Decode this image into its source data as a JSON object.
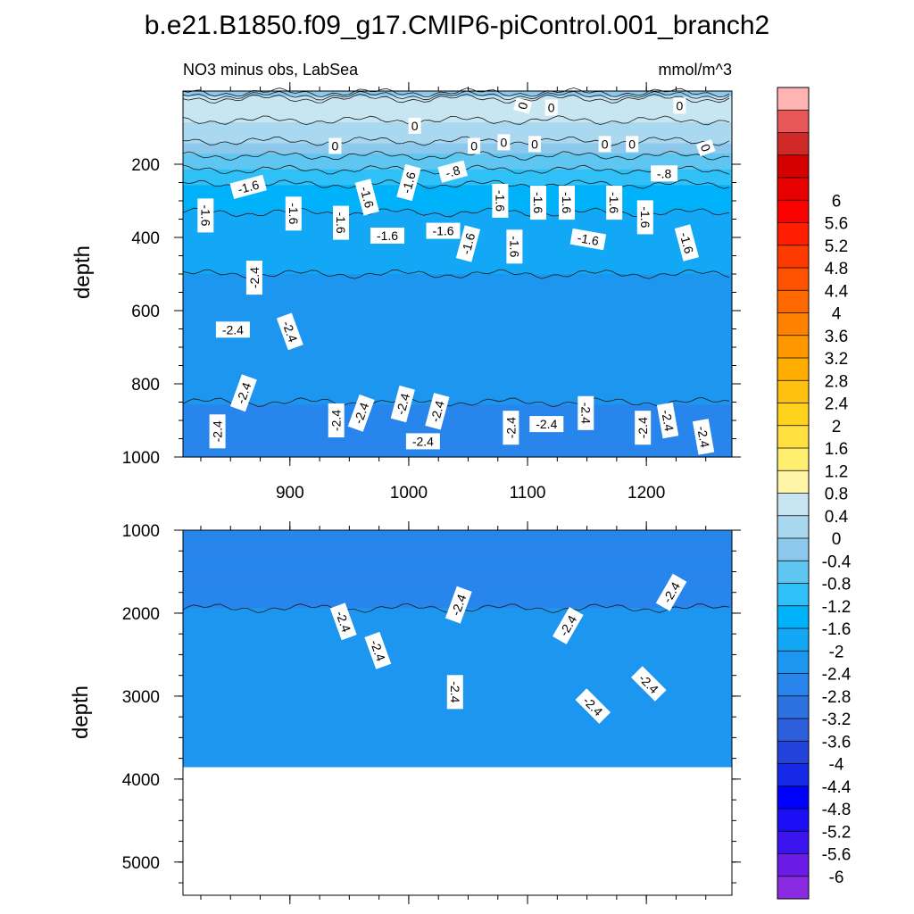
{
  "chart_data": {
    "type": "heatmap",
    "title": "b.e21.B1850.f09_g17.CMIP6-piControl.001_branch2",
    "subtitle_left": "NO3 minus obs, LabSea",
    "subtitle_right": "mmol/m^3",
    "x": {
      "label": "",
      "range": [
        810,
        1272
      ],
      "ticks": [
        900,
        1000,
        1100,
        1200
      ],
      "tick_labels": [
        "900",
        "1000",
        "1100",
        "1200"
      ]
    },
    "panels": [
      {
        "name": "upper",
        "ylabel": "depth",
        "ylim": [
          1000,
          0
        ],
        "yticks": [
          200,
          400,
          600,
          800,
          1000
        ],
        "ytick_labels": [
          "200",
          "400",
          "600",
          "800",
          "1000"
        ],
        "profile": [
          {
            "depth": 0,
            "value": -0.6
          },
          {
            "depth": 25,
            "value": 0.6
          },
          {
            "depth": 60,
            "value": 0.5
          },
          {
            "depth": 100,
            "value": 0.3
          },
          {
            "depth": 130,
            "value": 0.1
          },
          {
            "depth": 150,
            "value": -0.2
          },
          {
            "depth": 190,
            "value": -0.5
          },
          {
            "depth": 240,
            "value": -1.1
          },
          {
            "depth": 300,
            "value": -1.5
          },
          {
            "depth": 380,
            "value": -1.75
          },
          {
            "depth": 500,
            "value": -2.0
          },
          {
            "depth": 650,
            "value": -2.15
          },
          {
            "depth": 800,
            "value": -2.3
          },
          {
            "depth": 900,
            "value": -2.5
          },
          {
            "depth": 1000,
            "value": -2.6
          }
        ],
        "contour_labels": [
          {
            "text": "0",
            "x": 1005,
            "depth": 95,
            "angle": 0
          },
          {
            "text": "0",
            "x": 1096,
            "depth": 40,
            "angle": -75
          },
          {
            "text": "0",
            "x": 1120,
            "depth": 45,
            "angle": 0
          },
          {
            "text": "0",
            "x": 1228,
            "depth": 40,
            "angle": 0
          },
          {
            "text": "0",
            "x": 938,
            "depth": 150,
            "angle": 0
          },
          {
            "text": "0",
            "x": 1055,
            "depth": 150,
            "angle": 0
          },
          {
            "text": "0",
            "x": 1080,
            "depth": 140,
            "angle": 0
          },
          {
            "text": "0",
            "x": 1106,
            "depth": 145,
            "angle": 0
          },
          {
            "text": "0",
            "x": 1165,
            "depth": 145,
            "angle": 0
          },
          {
            "text": "0",
            "x": 1188,
            "depth": 145,
            "angle": 0
          },
          {
            "text": "0",
            "x": 1250,
            "depth": 155,
            "angle": 70
          },
          {
            "text": "-.8",
            "x": 1037,
            "depth": 220,
            "angle": -15
          },
          {
            "text": "-.8",
            "x": 1215,
            "depth": 225,
            "angle": 0
          },
          {
            "text": "-1.6",
            "x": 865,
            "depth": 262,
            "angle": -15
          },
          {
            "text": "-1.6",
            "x": 1000,
            "depth": 250,
            "angle": -75
          },
          {
            "text": "-1.6",
            "x": 965,
            "depth": 290,
            "angle": 75
          },
          {
            "text": "-1.6",
            "x": 1077,
            "depth": 300,
            "angle": 90
          },
          {
            "text": "-1.6",
            "x": 1109,
            "depth": 305,
            "angle": 90
          },
          {
            "text": "-1.6",
            "x": 1133,
            "depth": 305,
            "angle": 90
          },
          {
            "text": "-1.6",
            "x": 1173,
            "depth": 305,
            "angle": 90
          },
          {
            "text": "-1.6",
            "x": 829,
            "depth": 340,
            "angle": 90
          },
          {
            "text": "-1.6",
            "x": 903,
            "depth": 335,
            "angle": 90
          },
          {
            "text": "-1.6",
            "x": 1199,
            "depth": 345,
            "angle": 90
          },
          {
            "text": "-1.6",
            "x": 943,
            "depth": 360,
            "angle": 90
          },
          {
            "text": "-1.6",
            "x": 982,
            "depth": 395,
            "angle": 0
          },
          {
            "text": "-1.6",
            "x": 1029,
            "depth": 382,
            "angle": 0
          },
          {
            "text": "-1.6",
            "x": 1050,
            "depth": 417,
            "angle": -75
          },
          {
            "text": "-1.6",
            "x": 1089,
            "depth": 425,
            "angle": 90
          },
          {
            "text": "-1.6",
            "x": 1151,
            "depth": 405,
            "angle": 10
          },
          {
            "text": "-1.6",
            "x": 1234,
            "depth": 415,
            "angle": 75
          },
          {
            "text": "-2.4",
            "x": 870,
            "depth": 510,
            "angle": -90
          },
          {
            "text": "-2.4",
            "x": 852,
            "depth": 652,
            "angle": 0
          },
          {
            "text": "-2.4",
            "x": 900,
            "depth": 657,
            "angle": 70
          },
          {
            "text": "-2.4",
            "x": 861,
            "depth": 825,
            "angle": -70
          },
          {
            "text": "-2.4",
            "x": 995,
            "depth": 855,
            "angle": -75
          },
          {
            "text": "-2.4",
            "x": 1024,
            "depth": 875,
            "angle": -75
          },
          {
            "text": "-2.4",
            "x": 960,
            "depth": 880,
            "angle": -70
          },
          {
            "text": "-2.4",
            "x": 1149,
            "depth": 880,
            "angle": 90
          },
          {
            "text": "-2.4",
            "x": 939,
            "depth": 900,
            "angle": -90
          },
          {
            "text": "-2.4",
            "x": 1218,
            "depth": 900,
            "angle": 80
          },
          {
            "text": "-2.4",
            "x": 1116,
            "depth": 910,
            "angle": 0
          },
          {
            "text": "-2.4",
            "x": 1086,
            "depth": 920,
            "angle": -90
          },
          {
            "text": "-2.4",
            "x": 1197,
            "depth": 920,
            "angle": -90
          },
          {
            "text": "-2.4",
            "x": 839,
            "depth": 930,
            "angle": -90
          },
          {
            "text": "-2.4",
            "x": 1248,
            "depth": 945,
            "angle": 80
          },
          {
            "text": "-2.4",
            "x": 1012,
            "depth": 957,
            "angle": 0
          }
        ]
      },
      {
        "name": "lower",
        "ylabel": "depth",
        "ylim": [
          5400,
          1000
        ],
        "yticks": [
          1000,
          2000,
          3000,
          4000,
          5000
        ],
        "ytick_labels": [
          "1000",
          "2000",
          "3000",
          "4000",
          "5000"
        ],
        "max_depth": 3850,
        "profile": [
          {
            "depth": 1000,
            "value": -2.7
          },
          {
            "depth": 1700,
            "value": -2.6
          },
          {
            "depth": 2000,
            "value": -2.35
          },
          {
            "depth": 3000,
            "value": -2.3
          },
          {
            "depth": 3850,
            "value": -2.3
          }
        ],
        "contour_labels": [
          {
            "text": "-2.4",
            "x": 1042,
            "depth": 1900,
            "angle": -70
          },
          {
            "text": "-2.4",
            "x": 1221,
            "depth": 1750,
            "angle": -60
          },
          {
            "text": "-2.4",
            "x": 945,
            "depth": 2100,
            "angle": 70
          },
          {
            "text": "-2.4",
            "x": 1134,
            "depth": 2150,
            "angle": -60
          },
          {
            "text": "-2.4",
            "x": 974,
            "depth": 2450,
            "angle": 70
          },
          {
            "text": "-2.4",
            "x": 1039,
            "depth": 2950,
            "angle": 90
          },
          {
            "text": "-2.4",
            "x": 1202,
            "depth": 2850,
            "angle": 45
          },
          {
            "text": "-2.4",
            "x": 1155,
            "depth": 3120,
            "angle": 45
          }
        ]
      }
    ],
    "colorbar": {
      "colors": [
        "#8a2be2",
        "#6a1ce6",
        "#3c14ee",
        "#1a0ff5",
        "#0000ff",
        "#1428e6",
        "#2442dc",
        "#2d5edc",
        "#2e72e2",
        "#2785ec",
        "#1d96f0",
        "#13a8f5",
        "#00b2fa",
        "#2ec0f6",
        "#5ec6f0",
        "#8cc8ec",
        "#aad8f0",
        "#c8e6f2",
        "#fff5a8",
        "#ffee70",
        "#ffe040",
        "#ffd21e",
        "#ffc010",
        "#ffae00",
        "#ff9800",
        "#ff8200",
        "#ff6a00",
        "#ff5200",
        "#ff3a00",
        "#ff1e00",
        "#ff0000",
        "#e60000",
        "#d40000",
        "#d12828",
        "#e85858",
        "#ffb4b4"
      ],
      "levels": [
        "-6",
        "-5.6",
        "-5.2",
        "-4.8",
        "-4.4",
        "-4",
        "-3.6",
        "-3.2",
        "-2.8",
        "-2.4",
        "-2",
        "-1.6",
        "-1.2",
        "-0.8",
        "-0.4",
        "0",
        "0.4",
        "0.8",
        "1.2",
        "1.6",
        "2",
        "2.4",
        "2.8",
        "3.2",
        "3.6",
        "4",
        "4.4",
        "4.8",
        "5.2",
        "5.6",
        "6"
      ]
    }
  }
}
